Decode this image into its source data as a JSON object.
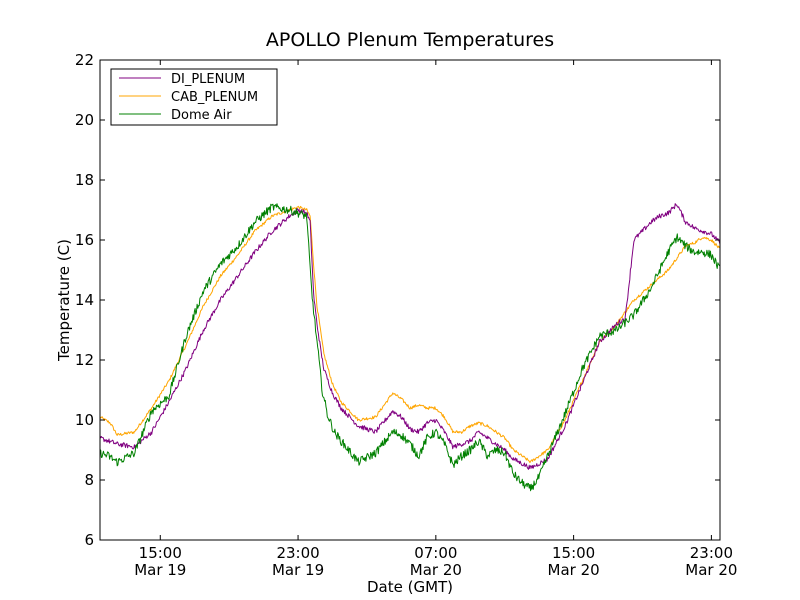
{
  "chart_data": {
    "type": "line",
    "title": "APOLLO Plenum Temperatures",
    "xlabel": "Date (GMT)",
    "ylabel": "Temperature (C)",
    "x_unit": "hours since Mar 19 11:30 GMT",
    "xlim": [
      0,
      36
    ],
    "ylim": [
      6,
      22
    ],
    "yticks": [
      6,
      8,
      10,
      12,
      14,
      16,
      18,
      20,
      22
    ],
    "xticks": [
      {
        "x": 3.5,
        "time": "15:00",
        "date": "Mar 19"
      },
      {
        "x": 11.5,
        "time": "23:00",
        "date": "Mar 19"
      },
      {
        "x": 19.5,
        "time": "07:00",
        "date": "Mar 20"
      },
      {
        "x": 27.5,
        "time": "15:00",
        "date": "Mar 20"
      },
      {
        "x": 35.5,
        "time": "23:00",
        "date": "Mar 20"
      }
    ],
    "grid": false,
    "legend_position": "top-left",
    "series": [
      {
        "name": "DI_PLENUM",
        "color": "#800080",
        "noise": 0.08,
        "x": [
          0,
          1,
          2,
          3,
          4,
          5,
          6,
          7,
          8,
          9,
          10,
          11,
          11.5,
          12,
          12.2,
          12.4,
          12.6,
          12.8,
          13,
          13.5,
          14,
          15,
          16,
          17,
          17.5,
          18,
          18.5,
          19,
          19.5,
          20,
          20.5,
          21,
          21.5,
          22,
          22.5,
          23,
          23.5,
          24,
          25,
          26,
          27,
          28,
          29,
          30,
          30.5,
          31,
          32,
          32.5,
          33,
          33.5,
          34,
          34.3,
          34.5,
          35,
          35.5,
          36
        ],
        "y": [
          9.4,
          9.2,
          9.1,
          9.6,
          10.6,
          11.7,
          13.0,
          14.0,
          14.8,
          15.6,
          16.3,
          16.8,
          17.0,
          16.9,
          16.6,
          14.2,
          13.2,
          12.4,
          11.7,
          10.9,
          10.4,
          9.8,
          9.6,
          10.3,
          10.1,
          9.7,
          9.6,
          9.9,
          10.0,
          9.6,
          9.1,
          9.2,
          9.3,
          9.6,
          9.4,
          9.2,
          9.0,
          8.7,
          8.4,
          8.7,
          9.8,
          11.2,
          12.6,
          13.2,
          13.4,
          16.0,
          16.6,
          16.8,
          16.9,
          17.2,
          16.6,
          16.5,
          16.4,
          16.3,
          16.2,
          15.9
        ]
      },
      {
        "name": "CAB_PLENUM",
        "color": "#ffa500",
        "noise": 0.05,
        "x": [
          0,
          0.6,
          1,
          2,
          3,
          4,
          5,
          6,
          7,
          8,
          9,
          10,
          11,
          11.5,
          12,
          12.2,
          12.4,
          12.6,
          12.8,
          13,
          13.5,
          14,
          15,
          16,
          17,
          17.5,
          18,
          18.5,
          19,
          19.5,
          20,
          20.5,
          21,
          21.5,
          22,
          22.5,
          23,
          23.5,
          24,
          25,
          26,
          27,
          28,
          29,
          30,
          31,
          32,
          33,
          33.5,
          34,
          34.5,
          35,
          35.5,
          36
        ],
        "y": [
          10.1,
          9.9,
          9.5,
          9.6,
          10.4,
          11.3,
          12.5,
          13.8,
          14.8,
          15.5,
          16.3,
          16.8,
          17.0,
          17.1,
          17.0,
          16.8,
          15.2,
          13.8,
          13.0,
          12.2,
          11.2,
          10.6,
          10.0,
          10.1,
          10.9,
          10.7,
          10.4,
          10.5,
          10.4,
          10.4,
          10.1,
          9.6,
          9.6,
          9.8,
          9.9,
          9.8,
          9.6,
          9.4,
          9.0,
          8.6,
          9.0,
          10.0,
          11.3,
          12.6,
          13.2,
          14.0,
          14.5,
          15.0,
          15.4,
          15.8,
          15.9,
          16.1,
          16.0,
          15.7
        ]
      },
      {
        "name": "Dome Air",
        "color": "#008000",
        "noise": 0.14,
        "x": [
          0,
          0.5,
          1,
          2,
          3,
          4,
          5,
          6,
          7,
          8,
          9,
          10,
          11,
          11.5,
          12,
          12.3,
          12.6,
          12.9,
          13.2,
          13.6,
          14,
          15,
          16,
          17,
          17.5,
          18,
          18.5,
          19,
          19.5,
          20,
          20.5,
          21,
          21.5,
          22,
          22.5,
          23,
          23.5,
          24,
          24.5,
          25,
          25.5,
          26,
          27,
          28,
          29,
          30,
          31,
          32,
          32.5,
          33,
          33.5,
          34,
          34.5,
          35,
          35.5,
          36
        ],
        "y": [
          8.9,
          8.8,
          8.6,
          8.9,
          10.3,
          10.8,
          12.8,
          14.3,
          15.2,
          15.8,
          16.6,
          17.1,
          17.0,
          16.9,
          16.8,
          14.2,
          12.6,
          11.0,
          10.2,
          9.6,
          9.3,
          8.6,
          8.9,
          9.6,
          9.5,
          9.2,
          8.8,
          9.4,
          9.6,
          9.2,
          8.5,
          8.8,
          9.0,
          9.3,
          8.8,
          9.0,
          8.9,
          8.2,
          7.9,
          7.7,
          8.1,
          8.8,
          10.2,
          11.7,
          12.8,
          13.0,
          13.5,
          14.4,
          15.0,
          15.6,
          16.1,
          15.8,
          15.6,
          15.6,
          15.5,
          15.0
        ]
      }
    ]
  }
}
